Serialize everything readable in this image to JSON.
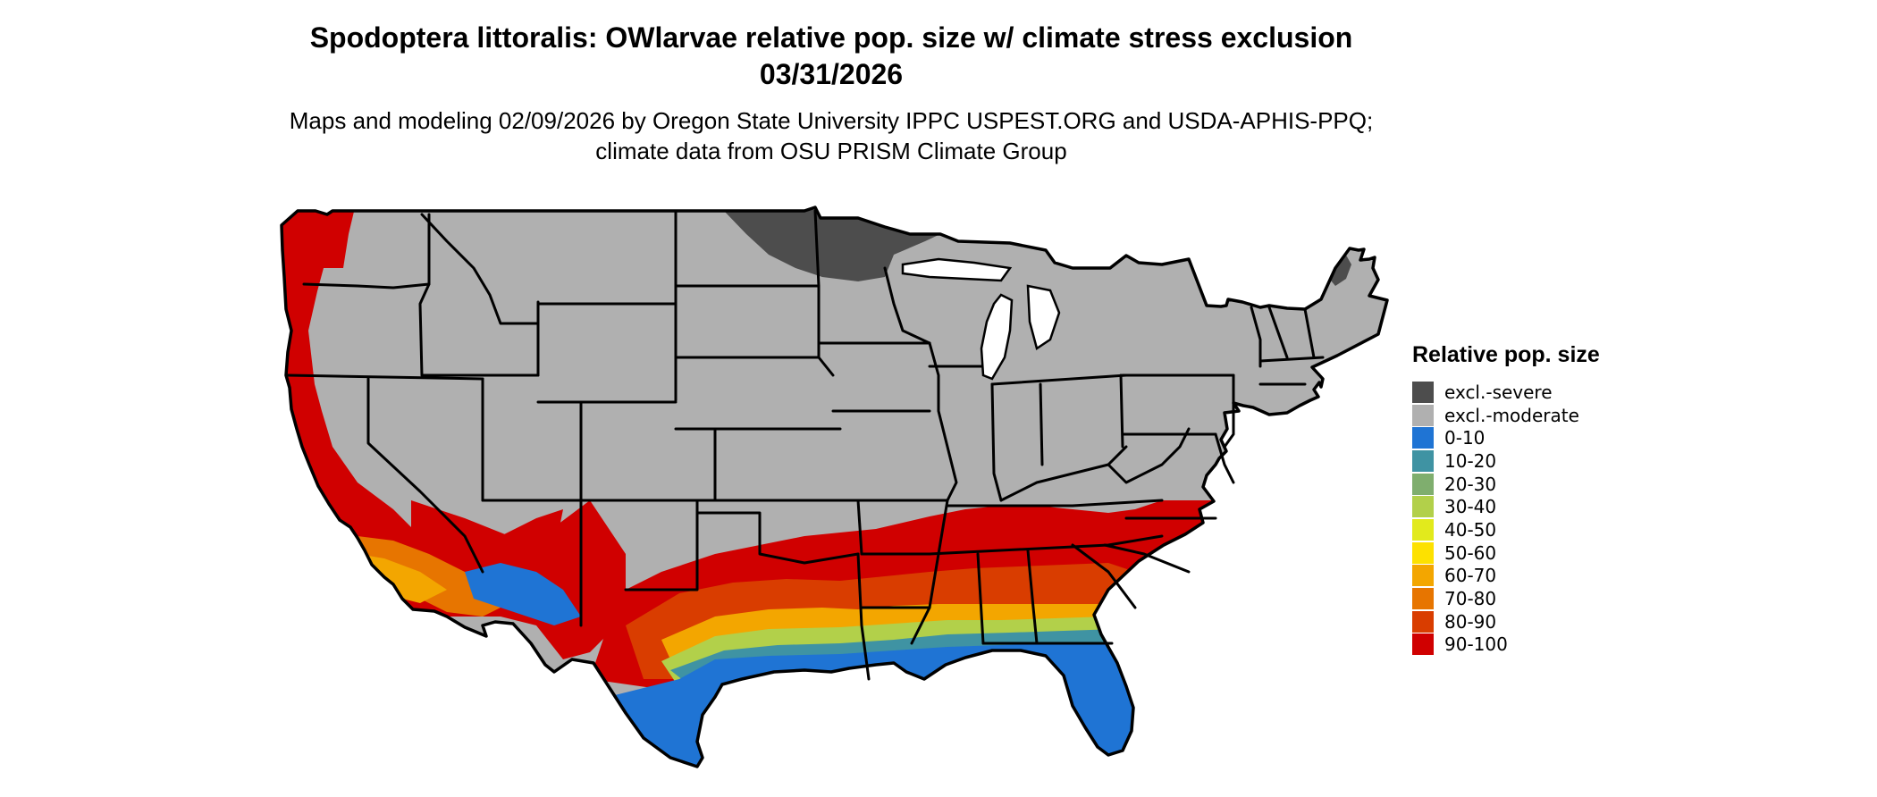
{
  "title": "Spodoptera littoralis: OWlarvae relative pop. size w/ climate stress exclusion 03/31/2026",
  "subtitle": "Maps and modeling 02/09/2026 by Oregon State University IPPC USPEST.ORG and USDA-APHIS-PPQ; climate data from OSU PRISM Climate Group",
  "legend": {
    "title": "Relative pop. size",
    "items": [
      {
        "label": "excl.-severe",
        "color": "#4d4d4d"
      },
      {
        "label": "excl.-moderate",
        "color": "#b0b0b0"
      },
      {
        "label": "0-10",
        "color": "#1f74d4"
      },
      {
        "label": "10-20",
        "color": "#3f93a3"
      },
      {
        "label": "20-30",
        "color": "#7fae6e"
      },
      {
        "label": "30-40",
        "color": "#b2d04a"
      },
      {
        "label": "40-50",
        "color": "#e2ea1c"
      },
      {
        "label": "50-60",
        "color": "#fde100"
      },
      {
        "label": "60-70",
        "color": "#f3a600"
      },
      {
        "label": "70-80",
        "color": "#e77500"
      },
      {
        "label": "80-90",
        "color": "#d93d00"
      },
      {
        "label": "90-100",
        "color": "#d00000"
      }
    ]
  },
  "map": {
    "region": "Contiguous United States",
    "projection": "Albers equal-area",
    "state_borders": true,
    "dominant_classes": {
      "northern_interior": "excl.-moderate",
      "northern_minnesota": "excl.-severe",
      "northern_maine": "excl.-severe",
      "pacific_coast": "90-100",
      "southeast_band": "90-100",
      "gulf_coast": "0-10",
      "florida": "0-10",
      "southern_arizona": "0-10"
    }
  }
}
